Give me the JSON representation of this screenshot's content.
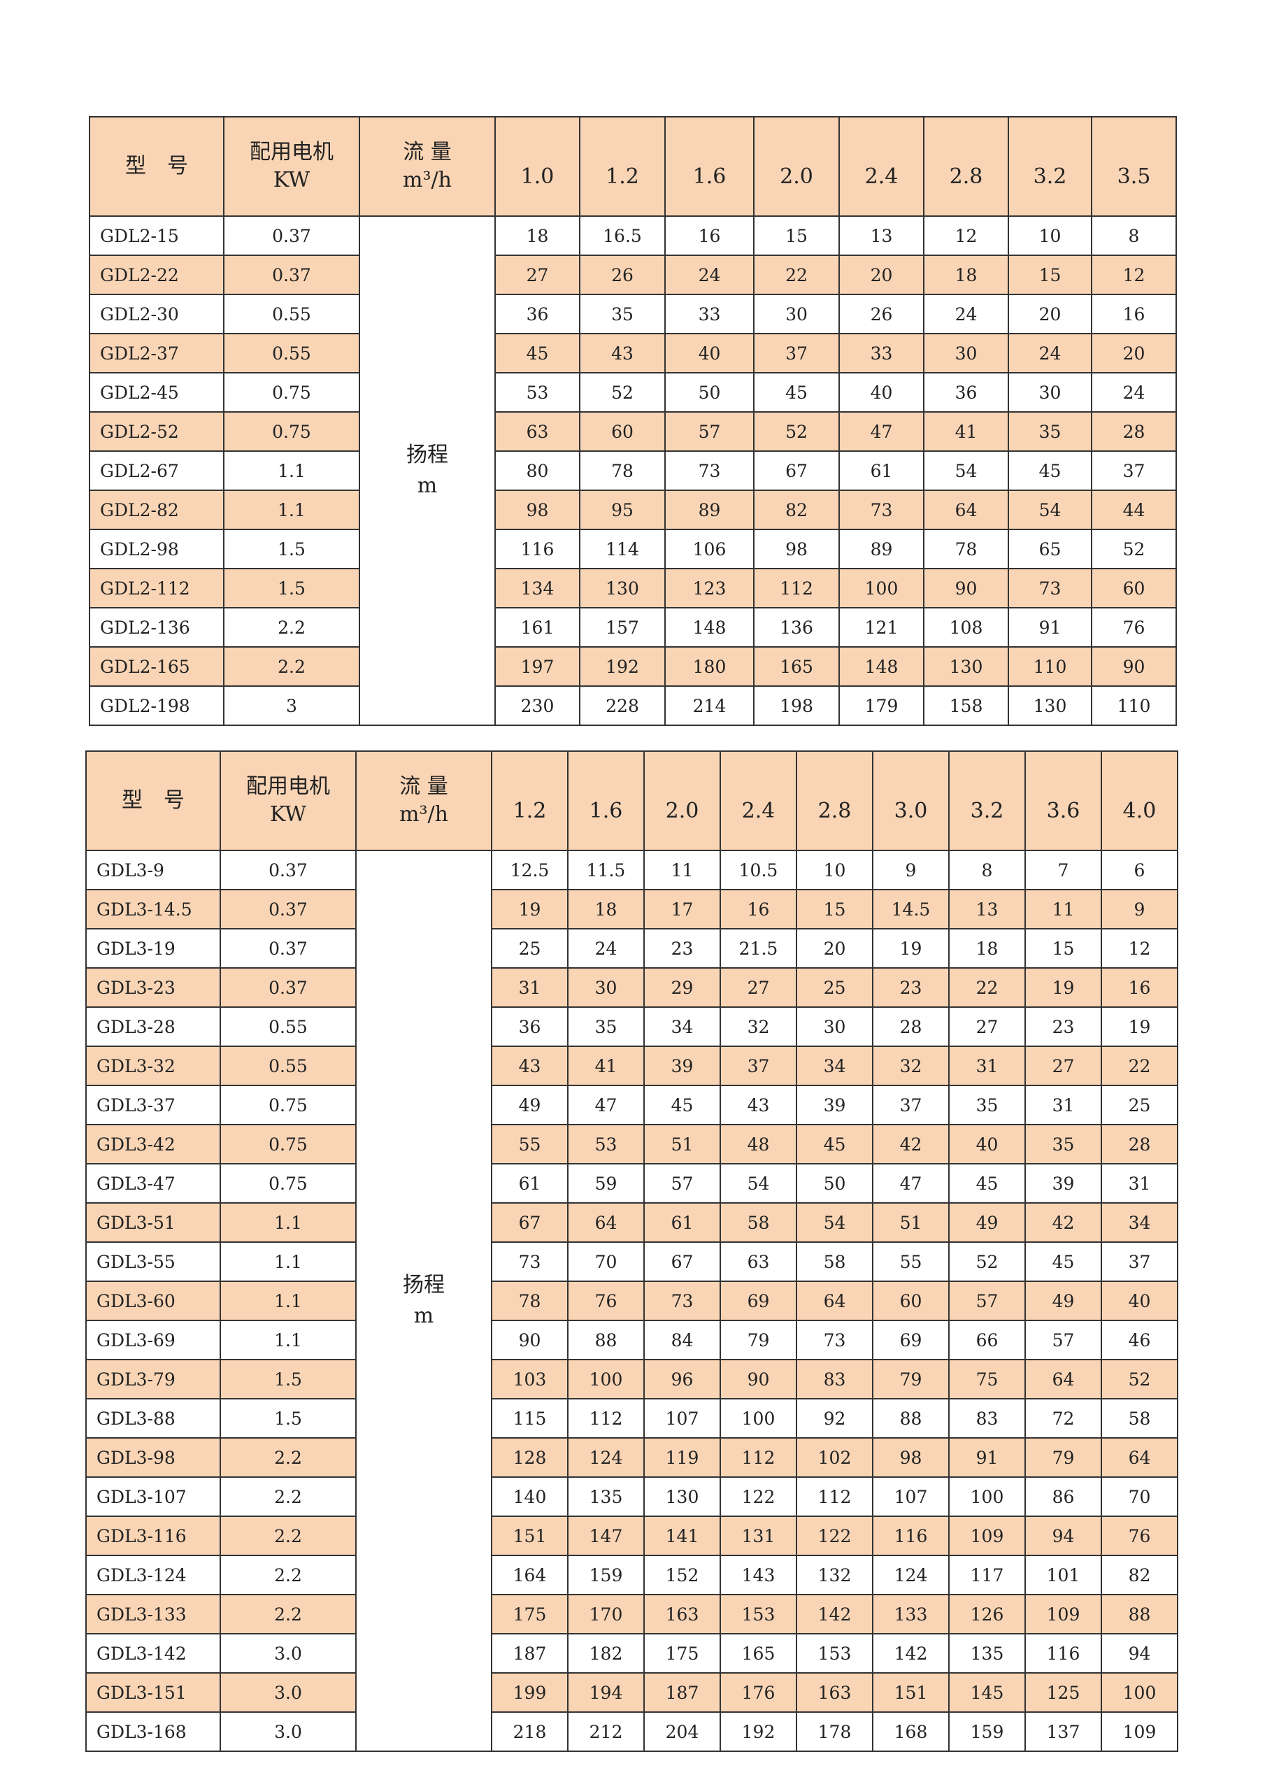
{
  "tables": [
    {
      "header": {
        "model": "型　号",
        "motor": [
          "配用电机",
          "KW"
        ],
        "flow": [
          "流 量",
          "m³/h"
        ],
        "flows": [
          "1.0",
          "1.2",
          "1.6",
          "2.0",
          "2.4",
          "2.8",
          "3.2",
          "3.5"
        ]
      },
      "head": [
        "扬程",
        "m"
      ],
      "rows": [
        [
          "GDL2-15",
          "0.37",
          18,
          16.5,
          16,
          15,
          13,
          12,
          10,
          8
        ],
        [
          "GDL2-22",
          "0.37",
          27,
          26,
          24,
          22,
          20,
          18,
          15,
          12
        ],
        [
          "GDL2-30",
          "0.55",
          36,
          35,
          33,
          30,
          26,
          24,
          20,
          16
        ],
        [
          "GDL2-37",
          "0.55",
          45,
          43,
          40,
          37,
          33,
          30,
          24,
          20
        ],
        [
          "GDL2-45",
          "0.75",
          53,
          52,
          50,
          45,
          40,
          36,
          30,
          24
        ],
        [
          "GDL2-52",
          "0.75",
          63,
          60,
          57,
          52,
          47,
          41,
          35,
          28
        ],
        [
          "GDL2-67",
          "1.1",
          80,
          78,
          73,
          67,
          61,
          54,
          45,
          37
        ],
        [
          "GDL2-82",
          "1.1",
          98,
          95,
          89,
          82,
          73,
          64,
          54,
          44
        ],
        [
          "GDL2-98",
          "1.5",
          116,
          114,
          106,
          98,
          89,
          78,
          65,
          52
        ],
        [
          "GDL2-112",
          "1.5",
          134,
          130,
          123,
          112,
          100,
          90,
          73,
          60
        ],
        [
          "GDL2-136",
          "2.2",
          161,
          157,
          148,
          136,
          121,
          108,
          91,
          76
        ],
        [
          "GDL2-165",
          "2.2",
          197,
          192,
          180,
          165,
          148,
          130,
          110,
          90
        ],
        [
          "GDL2-198",
          "3",
          230,
          228,
          214,
          198,
          179,
          158,
          130,
          110
        ]
      ]
    },
    {
      "header": {
        "model": "型　号",
        "motor": [
          "配用电机",
          "KW"
        ],
        "flow": [
          "流 量",
          "m³/h"
        ],
        "flows": [
          "1.2",
          "1.6",
          "2.0",
          "2.4",
          "2.8",
          "3.0",
          "3.2",
          "3.6",
          "4.0"
        ]
      },
      "head": [
        "扬程",
        "m"
      ],
      "rows": [
        [
          "GDL3-9",
          "0.37",
          12.5,
          11.5,
          11,
          10.5,
          10,
          9,
          8,
          7,
          6
        ],
        [
          "GDL3-14.5",
          "0.37",
          19,
          18,
          17,
          16,
          15,
          14.5,
          13,
          11,
          9
        ],
        [
          "GDL3-19",
          "0.37",
          25,
          24,
          23,
          21.5,
          20,
          19,
          18,
          15,
          12
        ],
        [
          "GDL3-23",
          "0.37",
          31,
          30,
          29,
          27,
          25,
          23,
          22,
          19,
          16
        ],
        [
          "GDL3-28",
          "0.55",
          36,
          35,
          34,
          32,
          30,
          28,
          27,
          23,
          19
        ],
        [
          "GDL3-32",
          "0.55",
          43,
          41,
          39,
          37,
          34,
          32,
          31,
          27,
          22
        ],
        [
          "GDL3-37",
          "0.75",
          49,
          47,
          45,
          43,
          39,
          37,
          35,
          31,
          25
        ],
        [
          "GDL3-42",
          "0.75",
          55,
          53,
          51,
          48,
          45,
          42,
          40,
          35,
          28
        ],
        [
          "GDL3-47",
          "0.75",
          61,
          59,
          57,
          54,
          50,
          47,
          45,
          39,
          31
        ],
        [
          "GDL3-51",
          "1.1",
          67,
          64,
          61,
          58,
          54,
          51,
          49,
          42,
          34
        ],
        [
          "GDL3-55",
          "1.1",
          73,
          70,
          67,
          63,
          58,
          55,
          52,
          45,
          37
        ],
        [
          "GDL3-60",
          "1.1",
          78,
          76,
          73,
          69,
          64,
          60,
          57,
          49,
          40
        ],
        [
          "GDL3-69",
          "1.1",
          90,
          88,
          84,
          79,
          73,
          69,
          66,
          57,
          46
        ],
        [
          "GDL3-79",
          "1.5",
          103,
          100,
          96,
          90,
          83,
          79,
          75,
          64,
          52
        ],
        [
          "GDL3-88",
          "1.5",
          115,
          112,
          107,
          100,
          92,
          88,
          83,
          72,
          58
        ],
        [
          "GDL3-98",
          "2.2",
          128,
          124,
          119,
          112,
          102,
          98,
          91,
          79,
          64
        ],
        [
          "GDL3-107",
          "2.2",
          140,
          135,
          130,
          122,
          112,
          107,
          100,
          86,
          70
        ],
        [
          "GDL3-116",
          "2.2",
          151,
          147,
          141,
          131,
          122,
          116,
          109,
          94,
          76
        ],
        [
          "GDL3-124",
          "2.2",
          164,
          159,
          152,
          143,
          132,
          124,
          117,
          101,
          82
        ],
        [
          "GDL3-133",
          "2.2",
          175,
          170,
          163,
          153,
          142,
          133,
          126,
          109,
          88
        ],
        [
          "GDL3-142",
          "3.0",
          187,
          182,
          175,
          165,
          153,
          142,
          135,
          116,
          94
        ],
        [
          "GDL3-151",
          "3.0",
          199,
          194,
          187,
          176,
          163,
          151,
          145,
          125,
          100
        ],
        [
          "GDL3-168",
          "3.0",
          218,
          212,
          204,
          192,
          178,
          168,
          159,
          137,
          109
        ]
      ]
    }
  ]
}
